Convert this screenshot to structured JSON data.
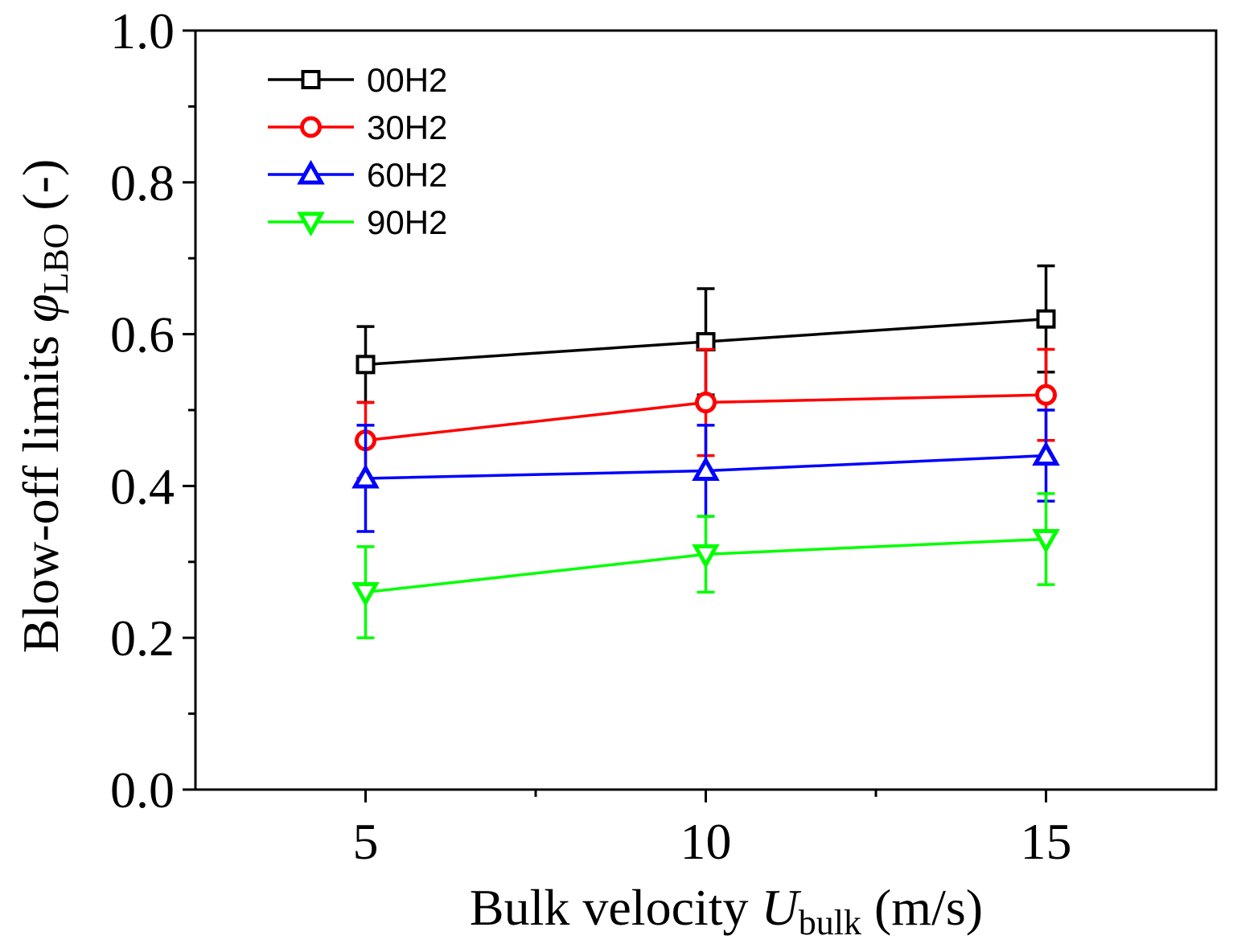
{
  "chart_data": {
    "type": "line",
    "title": "",
    "xlabel": {
      "prefix": "Bulk velocity ",
      "symbol": "U",
      "subscript": "bulk",
      "suffix": " (m/s)"
    },
    "ylabel": {
      "prefix": "Blow-off limits ",
      "symbol": "φ",
      "subscript": "LBO",
      "suffix": " (-)"
    },
    "xlim": [
      2.5,
      17.5
    ],
    "ylim": [
      0.0,
      1.0
    ],
    "x_ticks": [
      5,
      10,
      15
    ],
    "x_tick_labels": [
      "5",
      "10",
      "15"
    ],
    "x_minor_ticks": [
      7.5,
      12.5
    ],
    "y_ticks": [
      0.0,
      0.2,
      0.4,
      0.6,
      0.8,
      1.0
    ],
    "y_tick_labels": [
      "0.0",
      "0.2",
      "0.4",
      "0.6",
      "0.8",
      "1.0"
    ],
    "y_minor_ticks": [
      0.1,
      0.3,
      0.5,
      0.7,
      0.9
    ],
    "grid": false,
    "legend_position": "top-left",
    "x": [
      5,
      10,
      15
    ],
    "series": [
      {
        "name": "00H2",
        "color": "#000000",
        "marker": "square",
        "values": [
          0.56,
          0.59,
          0.62
        ],
        "err_upper": [
          0.61,
          0.66,
          0.69
        ],
        "err_lower": [
          0.51,
          0.52,
          0.55
        ]
      },
      {
        "name": "30H2",
        "color": "#ff0000",
        "marker": "circle",
        "values": [
          0.46,
          0.51,
          0.52
        ],
        "err_upper": [
          0.51,
          0.58,
          0.58
        ],
        "err_lower": [
          0.41,
          0.44,
          0.46
        ]
      },
      {
        "name": "60H2",
        "color": "#0000ff",
        "marker": "triangle-up",
        "values": [
          0.41,
          0.42,
          0.44
        ],
        "err_upper": [
          0.48,
          0.48,
          0.5
        ],
        "err_lower": [
          0.34,
          0.36,
          0.38
        ]
      },
      {
        "name": "90H2",
        "color": "#00ff00",
        "marker": "triangle-down",
        "values": [
          0.26,
          0.31,
          0.33
        ],
        "err_upper": [
          0.32,
          0.36,
          0.39
        ],
        "err_lower": [
          0.2,
          0.26,
          0.27
        ]
      }
    ]
  }
}
